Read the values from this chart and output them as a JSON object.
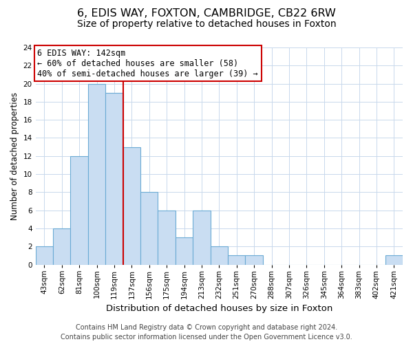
{
  "title": "6, EDIS WAY, FOXTON, CAMBRIDGE, CB22 6RW",
  "subtitle": "Size of property relative to detached houses in Foxton",
  "xlabel": "Distribution of detached houses by size in Foxton",
  "ylabel": "Number of detached properties",
  "categories": [
    "43sqm",
    "62sqm",
    "81sqm",
    "100sqm",
    "119sqm",
    "137sqm",
    "156sqm",
    "175sqm",
    "194sqm",
    "213sqm",
    "232sqm",
    "251sqm",
    "270sqm",
    "288sqm",
    "307sqm",
    "326sqm",
    "345sqm",
    "364sqm",
    "383sqm",
    "402sqm",
    "421sqm"
  ],
  "values": [
    2,
    4,
    12,
    20,
    19,
    13,
    8,
    6,
    3,
    6,
    2,
    1,
    1,
    0,
    0,
    0,
    0,
    0,
    0,
    0,
    1
  ],
  "bar_color": "#c9ddf2",
  "bar_edge_color": "#6aaad4",
  "vline_color": "#cc0000",
  "vline_after_index": 4,
  "annotation_line1": "6 EDIS WAY: 142sqm",
  "annotation_line2": "← 60% of detached houses are smaller (58)",
  "annotation_line3": "40% of semi-detached houses are larger (39) →",
  "annotation_box_color": "#ffffff",
  "annotation_box_edge": "#cc0000",
  "ylim": [
    0,
    24
  ],
  "yticks": [
    0,
    2,
    4,
    6,
    8,
    10,
    12,
    14,
    16,
    18,
    20,
    22,
    24
  ],
  "footer_line1": "Contains HM Land Registry data © Crown copyright and database right 2024.",
  "footer_line2": "Contains public sector information licensed under the Open Government Licence v3.0.",
  "title_fontsize": 11.5,
  "subtitle_fontsize": 10,
  "xlabel_fontsize": 9.5,
  "ylabel_fontsize": 8.5,
  "tick_fontsize": 7.5,
  "annotation_fontsize": 8.5,
  "footer_fontsize": 7,
  "background_color": "#ffffff",
  "grid_color": "#c8d8ec"
}
